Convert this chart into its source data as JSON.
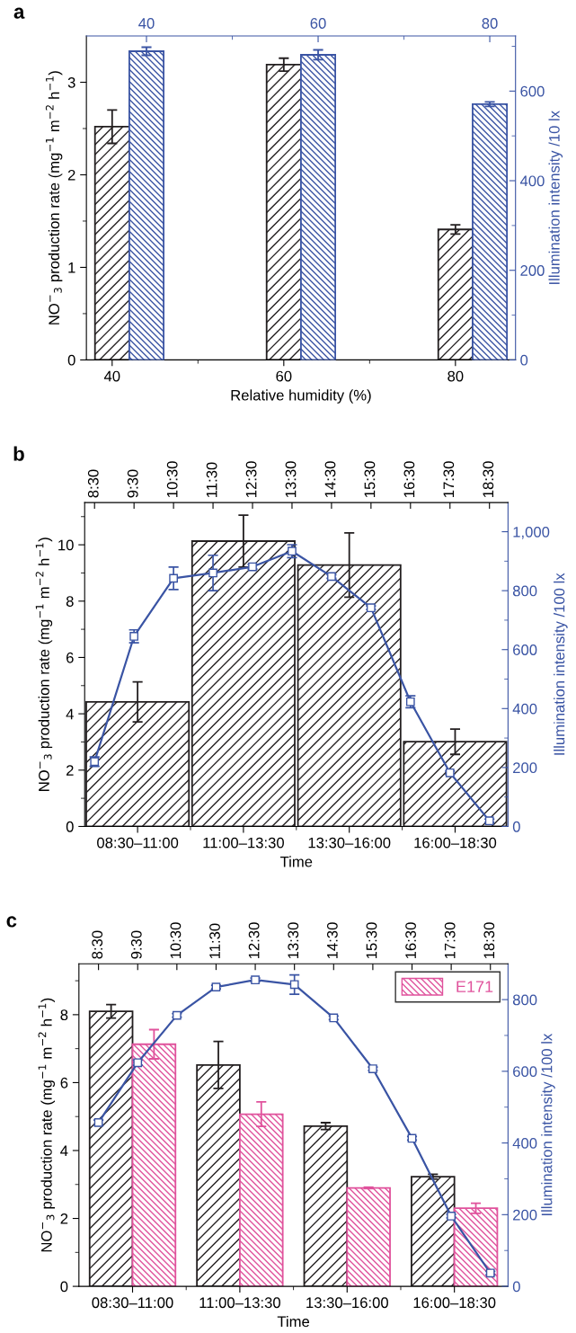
{
  "chart_data": [
    {
      "type": "bar",
      "title": "a",
      "xlabel": "Relative humidity (%)",
      "ylabel": "NO$^{−}$$_{3}$ production rate (mg$^{−1}$ m$^{−2}$ h$^{−1}$)",
      "y2label": "Illumination intensity /10 lx",
      "x": [
        40,
        60,
        80
      ],
      "xlim": [
        37,
        87
      ],
      "xticks": [
        40,
        {
          "value": 50,
          "label": null
        },
        60,
        {
          "value": 70,
          "label": null
        },
        80
      ],
      "x2lim": [
        33,
        83
      ],
      "x2ticks": [
        40,
        {
          "value": 50,
          "label": null
        },
        60,
        {
          "value": 70,
          "label": null
        },
        80
      ],
      "ylim": [
        0,
        3.5
      ],
      "yticks": [
        0,
        {
          "value": 0.5,
          "label": null
        },
        1,
        {
          "value": 1.5,
          "label": null
        },
        2,
        {
          "value": 2.5,
          "label": null
        },
        3
      ],
      "y2lim": [
        0,
        723
      ],
      "y2ticks": [
        0,
        {
          "value": 100,
          "label": null
        },
        200,
        {
          "value": 300,
          "label": null
        },
        400,
        {
          "value": 500,
          "label": null
        },
        600,
        {
          "value": 700,
          "label": null
        }
      ],
      "series": [
        {
          "color": "#231f20",
          "values": [
            2.52,
            3.19,
            1.41
          ],
          "errors": [
            0.18,
            0.07,
            0.05
          ]
        },
        {
          "color": "#3a54a4",
          "axis": "y2",
          "x": [
            40,
            60,
            80
          ],
          "values": [
            689,
            681,
            571
          ],
          "errors": [
            9,
            11,
            5
          ]
        }
      ]
    },
    {
      "type": "bar",
      "title": "b",
      "xlabel": "Time",
      "ylabel": "NO$^{−}$$_{3}$ production rate (mg$^{−1}$ m$^{−2}$ h$^{−1}$)",
      "categories": [
        "08:30–11:00",
        "11:00–13:30",
        "13:30–16:00",
        "16:00–18:30"
      ],
      "ylim": [
        0,
        11.5
      ],
      "yticks": [
        0,
        {
          "value": 1,
          "label": null
        },
        2,
        {
          "value": 3,
          "label": null
        },
        4,
        {
          "value": 5,
          "label": null
        },
        6,
        {
          "value": 7,
          "label": null
        },
        8,
        {
          "value": 9,
          "label": null
        },
        10,
        {
          "value": 11,
          "label": null
        }
      ],
      "series": [
        {
          "color": "#231f20",
          "values": [
            4.42,
            10.13,
            9.28,
            3.01
          ],
          "errors": [
            0.71,
            0.92,
            1.14,
            0.45
          ]
        }
      ]
    },
    {
      "type": "line",
      "ylabel": "Illumination intensity /100 lx",
      "xlim": [
        8.25,
        18.97
      ],
      "xticks": [
        {
          "value": 8.5,
          "label": "8:30"
        },
        {
          "value": 9.5,
          "label": "9:30"
        },
        {
          "value": 10.5,
          "label": "10:30"
        },
        {
          "value": 11.5,
          "label": "11:30"
        },
        {
          "value": 12.5,
          "label": "12:30"
        },
        {
          "value": 13.5,
          "label": "13:30"
        },
        {
          "value": 14.5,
          "label": "14:30"
        },
        {
          "value": 15.5,
          "label": "15:30"
        },
        {
          "value": 16.5,
          "label": "16:30"
        },
        {
          "value": 17.5,
          "label": "17:30"
        },
        {
          "value": 18.5,
          "label": "18:30"
        }
      ],
      "ylim": [
        0,
        1099
      ],
      "yticks": [
        0,
        {
          "value": 100,
          "label": null
        },
        200,
        {
          "value": 300,
          "label": null
        },
        400,
        {
          "value": 500,
          "label": null
        },
        600,
        {
          "value": 700,
          "label": null
        },
        800,
        {
          "value": 900,
          "label": null
        },
        {
          "value": 1000,
          "label": "1,000"
        }
      ],
      "marker": "square",
      "line_style": "solid",
      "x": [
        8.5,
        9.5,
        10.5,
        11.5,
        12.5,
        13.5,
        14.5,
        15.5,
        16.5,
        17.5,
        18.5
      ],
      "series": [
        {
          "color": "#3a54a4",
          "values": [
            220,
            645,
            842,
            860,
            881,
            934,
            848,
            742,
            423,
            182,
            19
          ],
          "errors": [
            16,
            22,
            38,
            60,
            8,
            22,
            6,
            6,
            20,
            6,
            6
          ]
        }
      ]
    },
    {
      "type": "bar",
      "title": "c",
      "xlabel": "Time",
      "ylabel": "NO$^{−}$$_{3}$ production rate (mg$^{−1}$ m$^{−2}$ h$^{−1}$)",
      "categories": [
        "08:30–11:00",
        "11:00–13:30",
        "13:30–16:00",
        "16:00–18:30"
      ],
      "ylim": [
        0,
        9.5
      ],
      "yticks": [
        0,
        {
          "value": 1,
          "label": null
        },
        2,
        {
          "value": 3,
          "label": null
        },
        4,
        {
          "value": 5,
          "label": null
        },
        6,
        {
          "value": 7,
          "label": null
        },
        8,
        {
          "value": 9,
          "label": null
        }
      ],
      "legend": "top right",
      "series": [
        {
          "color": "#231f20",
          "values": [
            8.1,
            6.52,
            4.72,
            3.23
          ],
          "errors": [
            0.2,
            0.69,
            0.1,
            0.07
          ]
        },
        {
          "name": "E171",
          "color": "#e0529c",
          "values": [
            7.13,
            5.07,
            2.9,
            2.3
          ],
          "errors": [
            0.43,
            0.36,
            0.02,
            0.15
          ]
        }
      ]
    },
    {
      "type": "line",
      "ylabel": "Illumination intensity /100 lx",
      "xlim": [
        8.0,
        18.95
      ],
      "xticks": [
        {
          "value": 8.5,
          "label": "8:30"
        },
        {
          "value": 9.5,
          "label": "9:30"
        },
        {
          "value": 10.5,
          "label": "10:30"
        },
        {
          "value": 11.5,
          "label": "11:30"
        },
        {
          "value": 12.5,
          "label": "12:30"
        },
        {
          "value": 13.5,
          "label": "13:30"
        },
        {
          "value": 14.5,
          "label": "14:30"
        },
        {
          "value": 15.5,
          "label": "15:30"
        },
        {
          "value": 16.5,
          "label": "16:30"
        },
        {
          "value": 17.5,
          "label": "17:30"
        },
        {
          "value": 18.5,
          "label": "18:30"
        }
      ],
      "ylim": [
        0,
        900
      ],
      "yticks": [
        0,
        {
          "value": 100,
          "label": null
        },
        200,
        {
          "value": 300,
          "label": null
        },
        400,
        {
          "value": 500,
          "label": null
        },
        600,
        {
          "value": 700,
          "label": null
        },
        800
      ],
      "marker": "square",
      "line_style": "solid",
      "x": [
        8.5,
        9.5,
        10.5,
        11.5,
        12.5,
        13.5,
        14.5,
        15.5,
        16.5,
        17.5,
        18.5
      ],
      "series": [
        {
          "color": "#3a54a4",
          "values": [
            457,
            624,
            756,
            835,
            855,
            842,
            749,
            607,
            413,
            196,
            37
          ],
          "errors": [
            7,
            7,
            5,
            5,
            5,
            27,
            5,
            5,
            5,
            5,
            5
          ]
        }
      ]
    }
  ]
}
